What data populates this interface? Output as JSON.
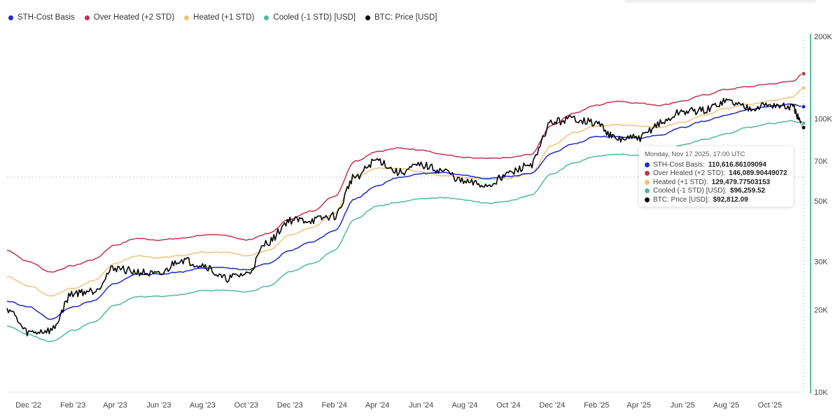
{
  "colors": {
    "sth": "#1f2bc2",
    "over": "#c2344f",
    "heated": "#f2c27a",
    "cooled": "#4fb9a0",
    "price": "#000000",
    "accent": "#23a67f"
  },
  "legend": [
    {
      "label": "STH-Cost Basis",
      "color": "#1f2bc2"
    },
    {
      "label": "Over Heated (+2 STD)",
      "color": "#c2344f"
    },
    {
      "label": "Heated (+1 STD)",
      "color": "#f2c27a"
    },
    {
      "label": "Cooled (-1 STD) [USD]",
      "color": "#4fb9a0"
    },
    {
      "label": "BTC: Price [USD]",
      "color": "#000000"
    }
  ],
  "tooltip": {
    "date": "Monday, Nov 17 2025, 17:00 UTC",
    "rows": [
      {
        "label": "STH-Cost Basis:",
        "value": "110,616.86109094",
        "color": "#1f2bc2"
      },
      {
        "label": "Over Heated (+2 STD):",
        "value": "146,089.90449072",
        "color": "#c2344f"
      },
      {
        "label": "Heated (+1 STD):",
        "value": "129,479.77503153",
        "color": "#f2c27a"
      },
      {
        "label": "Cooled (-1 STD) [USD]:",
        "value": "$96,259.52",
        "color": "#4fb9a0"
      },
      {
        "label": "BTC: Price [USD]:",
        "value": "$92,812.09",
        "color": "#000000"
      }
    ]
  },
  "chart_data": {
    "type": "line",
    "title": "",
    "xlabel": "",
    "ylabel": "",
    "yscale": "log",
    "ylim": [
      10000,
      200000
    ],
    "y_ticks": [
      {
        "value": 10000,
        "label": "10K"
      },
      {
        "value": 20000,
        "label": "20K"
      },
      {
        "value": 30000,
        "label": "30K"
      },
      {
        "value": 50000,
        "label": "50K"
      },
      {
        "value": 70000,
        "label": "70K"
      },
      {
        "value": 100000,
        "label": "100K"
      },
      {
        "value": 200000,
        "label": "200K"
      }
    ],
    "x_ticks": [
      {
        "date": "2022-12-01",
        "label": "Dec '22"
      },
      {
        "date": "2023-02-01",
        "label": "Feb '23"
      },
      {
        "date": "2023-04-01",
        "label": "Apr '23"
      },
      {
        "date": "2023-06-01",
        "label": "Jun '23"
      },
      {
        "date": "2023-08-01",
        "label": "Aug '23"
      },
      {
        "date": "2023-10-01",
        "label": "Oct '23"
      },
      {
        "date": "2023-12-01",
        "label": "Dec '23"
      },
      {
        "date": "2024-02-01",
        "label": "Feb '24"
      },
      {
        "date": "2024-04-01",
        "label": "Apr '24"
      },
      {
        "date": "2024-06-01",
        "label": "Jun '24"
      },
      {
        "date": "2024-08-01",
        "label": "Aug '24"
      },
      {
        "date": "2024-10-01",
        "label": "Oct '24"
      },
      {
        "date": "2024-12-01",
        "label": "Dec '24"
      },
      {
        "date": "2025-02-01",
        "label": "Feb '25"
      },
      {
        "date": "2025-04-01",
        "label": "Apr '25"
      },
      {
        "date": "2025-06-01",
        "label": "Jun '25"
      },
      {
        "date": "2025-08-01",
        "label": "Aug '25"
      },
      {
        "date": "2025-10-01",
        "label": "Oct '25"
      }
    ],
    "x": [
      "2022-11-01",
      "2022-12-01",
      "2023-01-01",
      "2023-02-01",
      "2023-03-01",
      "2023-04-01",
      "2023-05-01",
      "2023-06-01",
      "2023-07-01",
      "2023-08-01",
      "2023-09-01",
      "2023-10-01",
      "2023-11-01",
      "2023-12-01",
      "2024-01-01",
      "2024-02-01",
      "2024-03-01",
      "2024-04-01",
      "2024-05-01",
      "2024-06-01",
      "2024-07-01",
      "2024-08-01",
      "2024-09-01",
      "2024-10-01",
      "2024-11-01",
      "2024-12-01",
      "2025-01-01",
      "2025-02-01",
      "2025-03-01",
      "2025-04-01",
      "2025-05-01",
      "2025-06-01",
      "2025-07-01",
      "2025-08-01",
      "2025-09-01",
      "2025-10-01",
      "2025-11-01",
      "2025-11-17"
    ],
    "series": [
      {
        "name": "Over Heated (+2 STD)",
        "color": "#c2344f",
        "values": [
          33000,
          30000,
          27500,
          29000,
          30500,
          34500,
          36500,
          36000,
          36500,
          37500,
          37500,
          36000,
          38000,
          43000,
          46000,
          52000,
          70000,
          76000,
          78000,
          77000,
          74000,
          72000,
          71500,
          72000,
          74000,
          95000,
          105000,
          112000,
          116000,
          114000,
          112000,
          116000,
          122000,
          128000,
          131000,
          134000,
          137000,
          146090
        ]
      },
      {
        "name": "Heated (+1 STD)",
        "color": "#f2c27a",
        "values": [
          26500,
          24500,
          22500,
          24000,
          25500,
          29500,
          31500,
          31000,
          31500,
          32500,
          32500,
          31500,
          33000,
          37500,
          40000,
          45000,
          61000,
          66000,
          66000,
          64000,
          62000,
          61000,
          60000,
          60500,
          63000,
          80000,
          89000,
          94000,
          95000,
          94000,
          93000,
          97000,
          103000,
          109000,
          113000,
          116000,
          120000,
          129480
        ]
      },
      {
        "name": "STH-Cost Basis",
        "color": "#1f2bc2",
        "values": [
          21500,
          20500,
          18500,
          20500,
          21500,
          25000,
          27000,
          27000,
          27500,
          28500,
          28500,
          28000,
          29500,
          33000,
          35500,
          39000,
          51000,
          57000,
          61000,
          63000,
          63500,
          62000,
          60500,
          61500,
          63000,
          75000,
          81000,
          86000,
          86000,
          85000,
          87000,
          93000,
          98000,
          103000,
          108000,
          111000,
          113000,
          110617
        ]
      },
      {
        "name": "Cooled (-1 STD) [USD]",
        "color": "#4fb9a0",
        "values": [
          17500,
          16200,
          15300,
          16800,
          18000,
          20800,
          22300,
          22400,
          22700,
          23500,
          23600,
          23200,
          24400,
          27500,
          29500,
          33000,
          43000,
          48000,
          49500,
          51000,
          51500,
          50500,
          49000,
          50000,
          52500,
          63000,
          69000,
          73000,
          74000,
          73500,
          75000,
          80000,
          84000,
          88000,
          93000,
          96000,
          98000,
          96260
        ]
      },
      {
        "name": "BTC: Price [USD]",
        "color": "#000000",
        "values": [
          20200,
          16500,
          16800,
          23000,
          23500,
          28500,
          27500,
          26800,
          30500,
          29200,
          26000,
          27000,
          35500,
          42500,
          42500,
          44000,
          61500,
          70500,
          63500,
          67500,
          64500,
          58500,
          57000,
          63000,
          68000,
          97000,
          100000,
          96000,
          84000,
          85000,
          96000,
          106000,
          107000,
          116000,
          110000,
          112000,
          110000,
          92812
        ]
      }
    ]
  }
}
